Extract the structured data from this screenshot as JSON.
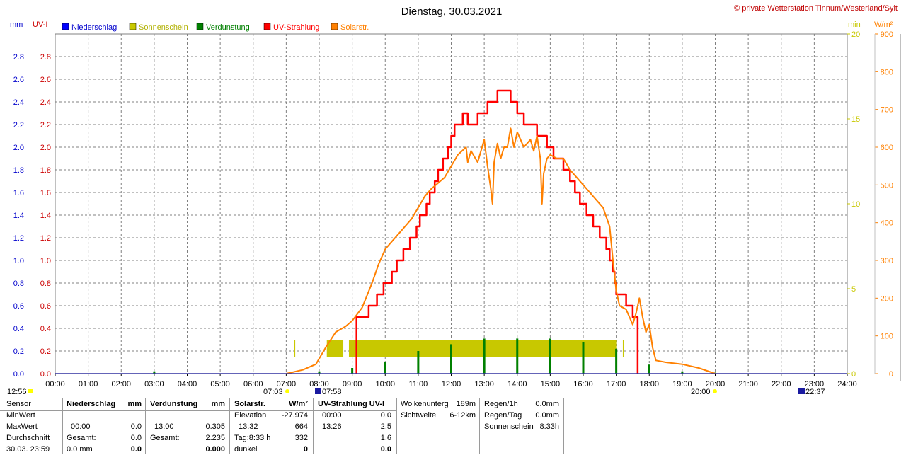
{
  "header": {
    "title": "Dienstag, 30.03.2021",
    "copyright": "© private Wetterstation Tinnum/Westerland/Sylt",
    "unit_mm": "mm",
    "unit_uvi": "UV-I",
    "unit_min": "min",
    "unit_wm2": "W/m²"
  },
  "legend": [
    {
      "label": "Niederschlag",
      "color": "#0000ff"
    },
    {
      "label": "Sonnenschein",
      "color": "#c8c800"
    },
    {
      "label": "Verdunstung",
      "color": "#008000"
    },
    {
      "label": "UV-Strahlung",
      "color": "#ff0000"
    },
    {
      "label": "Solarstr.",
      "color": "#ff8000"
    }
  ],
  "markers": {
    "left_time": "12:56",
    "sunrise": "07:03",
    "civil": "07:58",
    "sunset": "20:00",
    "moon": "22:37"
  },
  "chart_data": {
    "type": "line",
    "title": "Dienstag, 30.03.2021",
    "x_ticks": [
      "00:00",
      "01:00",
      "02:00",
      "03:00",
      "04:00",
      "05:00",
      "06:00",
      "07:00",
      "08:00",
      "09:00",
      "10:00",
      "11:00",
      "12:00",
      "13:00",
      "14:00",
      "15:00",
      "16:00",
      "17:00",
      "18:00",
      "19:00",
      "20:00",
      "21:00",
      "22:00",
      "23:00",
      "24:00"
    ],
    "x_range_hours": [
      0,
      24
    ],
    "y_left_mm": {
      "ticks": [
        "0.0",
        "0.2",
        "0.4",
        "0.6",
        "0.8",
        "1.0",
        "1.2",
        "1.4",
        "1.6",
        "1.8",
        "2.0",
        "2.2",
        "2.4",
        "2.6",
        "2.8"
      ],
      "range": [
        0,
        3.0
      ]
    },
    "y_left_uvi": {
      "ticks": [
        "0.0",
        "0.2",
        "0.4",
        "0.6",
        "0.8",
        "1.0",
        "1.2",
        "1.4",
        "1.6",
        "1.8",
        "2.0",
        "2.2",
        "2.4",
        "2.6",
        "2.8"
      ],
      "range": [
        0,
        3.0
      ]
    },
    "y_right_min": {
      "ticks": [
        "0",
        "5",
        "10",
        "15",
        "20"
      ],
      "range": [
        0,
        20
      ]
    },
    "y_right_wm2": {
      "ticks": [
        "0",
        "100",
        "200",
        "300",
        "400",
        "500",
        "600",
        "700",
        "800",
        "900"
      ],
      "range": [
        0,
        900
      ]
    },
    "grid": true,
    "series": [
      {
        "name": "Sonnenschein",
        "axis": "min",
        "color": "#c8c800",
        "bars": [
          [
            7.23,
            7.26,
            1
          ],
          [
            8.23,
            8.73,
            1
          ],
          [
            8.9,
            17.0,
            1
          ],
          [
            17.2,
            17.24,
            1
          ]
        ]
      },
      {
        "name": "Verdunstung",
        "axis": "mm",
        "color": "#008000",
        "spikes": [
          [
            3.0,
            0.02
          ],
          [
            8.0,
            0.02
          ],
          [
            9.0,
            0.05
          ],
          [
            10.0,
            0.1
          ],
          [
            11.0,
            0.2
          ],
          [
            12.0,
            0.26
          ],
          [
            13.0,
            0.31
          ],
          [
            14.0,
            0.31
          ],
          [
            15.0,
            0.31
          ],
          [
            16.0,
            0.28
          ],
          [
            17.0,
            0.22
          ],
          [
            18.0,
            0.08
          ],
          [
            19.0,
            0.02
          ],
          [
            20.0,
            0.01
          ]
        ]
      },
      {
        "name": "UV-Strahlung",
        "axis": "uvi",
        "color": "#ff0000",
        "points": [
          [
            9.13,
            0.0
          ],
          [
            9.13,
            0.5
          ],
          [
            9.5,
            0.5
          ],
          [
            9.5,
            0.6
          ],
          [
            9.75,
            0.6
          ],
          [
            9.75,
            0.7
          ],
          [
            9.95,
            0.7
          ],
          [
            9.95,
            0.8
          ],
          [
            10.2,
            0.8
          ],
          [
            10.2,
            0.9
          ],
          [
            10.35,
            0.9
          ],
          [
            10.35,
            1.0
          ],
          [
            10.55,
            1.0
          ],
          [
            10.55,
            1.1
          ],
          [
            10.75,
            1.1
          ],
          [
            10.75,
            1.2
          ],
          [
            10.95,
            1.2
          ],
          [
            10.95,
            1.3
          ],
          [
            11.05,
            1.3
          ],
          [
            11.05,
            1.4
          ],
          [
            11.25,
            1.4
          ],
          [
            11.25,
            1.5
          ],
          [
            11.35,
            1.5
          ],
          [
            11.35,
            1.6
          ],
          [
            11.5,
            1.6
          ],
          [
            11.5,
            1.7
          ],
          [
            11.6,
            1.7
          ],
          [
            11.6,
            1.8
          ],
          [
            11.75,
            1.8
          ],
          [
            11.75,
            1.9
          ],
          [
            11.9,
            1.9
          ],
          [
            11.9,
            2.0
          ],
          [
            12.0,
            2.0
          ],
          [
            12.0,
            2.1
          ],
          [
            12.1,
            2.1
          ],
          [
            12.1,
            2.2
          ],
          [
            12.35,
            2.2
          ],
          [
            12.35,
            2.3
          ],
          [
            12.5,
            2.3
          ],
          [
            12.5,
            2.2
          ],
          [
            12.8,
            2.2
          ],
          [
            12.8,
            2.3
          ],
          [
            13.1,
            2.3
          ],
          [
            13.1,
            2.4
          ],
          [
            13.4,
            2.4
          ],
          [
            13.4,
            2.5
          ],
          [
            13.8,
            2.5
          ],
          [
            13.8,
            2.4
          ],
          [
            14.0,
            2.4
          ],
          [
            14.0,
            2.3
          ],
          [
            14.2,
            2.3
          ],
          [
            14.2,
            2.2
          ],
          [
            14.6,
            2.2
          ],
          [
            14.6,
            2.1
          ],
          [
            14.9,
            2.1
          ],
          [
            14.9,
            2.0
          ],
          [
            15.1,
            2.0
          ],
          [
            15.1,
            1.9
          ],
          [
            15.4,
            1.9
          ],
          [
            15.4,
            1.8
          ],
          [
            15.6,
            1.8
          ],
          [
            15.6,
            1.7
          ],
          [
            15.75,
            1.7
          ],
          [
            15.75,
            1.6
          ],
          [
            15.9,
            1.6
          ],
          [
            15.9,
            1.5
          ],
          [
            16.1,
            1.5
          ],
          [
            16.1,
            1.4
          ],
          [
            16.3,
            1.4
          ],
          [
            16.3,
            1.3
          ],
          [
            16.5,
            1.3
          ],
          [
            16.5,
            1.2
          ],
          [
            16.7,
            1.2
          ],
          [
            16.7,
            1.1
          ],
          [
            16.8,
            1.1
          ],
          [
            16.8,
            1.0
          ],
          [
            16.9,
            1.0
          ],
          [
            16.9,
            0.9
          ],
          [
            16.95,
            0.9
          ],
          [
            16.95,
            0.8
          ],
          [
            17.0,
            0.8
          ],
          [
            17.0,
            0.7
          ],
          [
            17.3,
            0.7
          ],
          [
            17.3,
            0.6
          ],
          [
            17.5,
            0.6
          ],
          [
            17.5,
            0.5
          ],
          [
            17.65,
            0.5
          ],
          [
            17.65,
            0.0
          ]
        ]
      },
      {
        "name": "Solarstr.",
        "axis": "wm2",
        "color": "#ff8000",
        "points": [
          [
            7.0,
            0
          ],
          [
            7.5,
            10
          ],
          [
            7.9,
            25
          ],
          [
            8.2,
            70
          ],
          [
            8.5,
            110
          ],
          [
            8.8,
            125
          ],
          [
            9.0,
            140
          ],
          [
            9.3,
            175
          ],
          [
            9.6,
            240
          ],
          [
            9.8,
            290
          ],
          [
            10.0,
            330
          ],
          [
            10.2,
            350
          ],
          [
            10.4,
            370
          ],
          [
            10.6,
            390
          ],
          [
            10.8,
            410
          ],
          [
            11.0,
            440
          ],
          [
            11.2,
            470
          ],
          [
            11.4,
            490
          ],
          [
            11.6,
            505
          ],
          [
            11.8,
            520
          ],
          [
            12.0,
            550
          ],
          [
            12.2,
            580
          ],
          [
            12.45,
            600
          ],
          [
            12.5,
            560
          ],
          [
            12.6,
            590
          ],
          [
            12.8,
            560
          ],
          [
            12.9,
            590
          ],
          [
            13.0,
            620
          ],
          [
            13.1,
            550
          ],
          [
            13.2,
            490
          ],
          [
            13.25,
            450
          ],
          [
            13.3,
            560
          ],
          [
            13.4,
            610
          ],
          [
            13.5,
            570
          ],
          [
            13.6,
            600
          ],
          [
            13.7,
            600
          ],
          [
            13.8,
            650
          ],
          [
            13.9,
            600
          ],
          [
            14.0,
            640
          ],
          [
            14.2,
            600
          ],
          [
            14.4,
            620
          ],
          [
            14.5,
            590
          ],
          [
            14.6,
            630
          ],
          [
            14.7,
            570
          ],
          [
            14.75,
            450
          ],
          [
            14.8,
            530
          ],
          [
            14.9,
            570
          ],
          [
            15.0,
            580
          ],
          [
            15.2,
            570
          ],
          [
            15.4,
            570
          ],
          [
            15.6,
            540
          ],
          [
            15.8,
            520
          ],
          [
            16.0,
            500
          ],
          [
            16.2,
            480
          ],
          [
            16.4,
            460
          ],
          [
            16.6,
            440
          ],
          [
            16.8,
            390
          ],
          [
            16.9,
            300
          ],
          [
            17.0,
            220
          ],
          [
            17.1,
            180
          ],
          [
            17.3,
            170
          ],
          [
            17.4,
            150
          ],
          [
            17.5,
            130
          ],
          [
            17.6,
            160
          ],
          [
            17.7,
            200
          ],
          [
            17.8,
            150
          ],
          [
            17.9,
            110
          ],
          [
            18.0,
            130
          ],
          [
            18.1,
            70
          ],
          [
            18.2,
            35
          ],
          [
            18.5,
            30
          ],
          [
            19.0,
            25
          ],
          [
            19.5,
            15
          ],
          [
            20.0,
            0
          ]
        ]
      }
    ]
  },
  "table": {
    "row_labels": [
      "Sensor",
      "MinWert",
      "MaxWert",
      "Durchschnitt",
      "30.03. 23:59"
    ],
    "niederschlag": {
      "header": "Niederschlag",
      "unit": "mm",
      "max_time": "00:00",
      "max_value": "0.0",
      "total_label": "Gesamt:",
      "total_value": "0.0",
      "last_value": "0.0 mm",
      "last_bold": "0.0"
    },
    "verdunstung": {
      "header": "Verdunstung",
      "unit": "mm",
      "max_time": "13:00",
      "max_value": "0.305",
      "total_label": "Gesamt:",
      "total_value": "2.235",
      "last_bold": "0.000"
    },
    "solar": {
      "header": "Solarstr.",
      "unit": "W/m²",
      "elevation_label": "Elevation",
      "elevation_value": "-27.974",
      "max_time": "13:32",
      "max_value": "664",
      "day_label": "Tag:8:33 h",
      "day_value": "332",
      "dark_label": "dunkel",
      "dark_value": "0"
    },
    "uv": {
      "header": "UV-Strahlung UV-I",
      "min_time": "00:00",
      "min_value": "0.0",
      "max_time": "13:26",
      "max_value": "2.5",
      "avg_value": "1.6",
      "last_value": "0.0"
    },
    "cloud": {
      "label1": "Wolkenunterg",
      "value1": "189m",
      "label2": "Sichtweite",
      "value2": "6-12km"
    },
    "rain": {
      "label1": "Regen/1h",
      "value1": "0.0mm",
      "label2": "Regen/Tag",
      "value2": "0.0mm",
      "label3": "Sonnenschein",
      "value3": "8:33h"
    }
  }
}
